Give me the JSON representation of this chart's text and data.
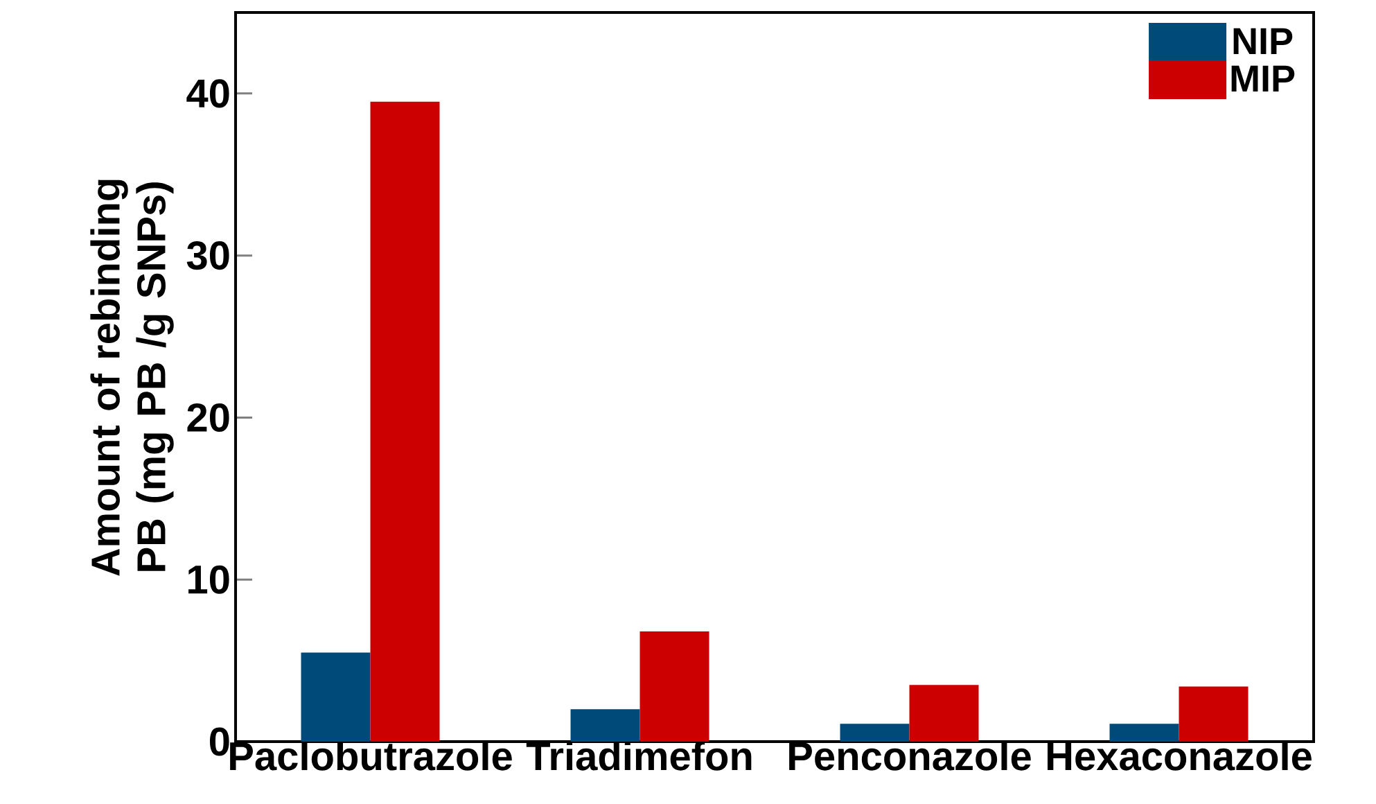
{
  "chart_data": {
    "type": "bar",
    "ylabel": "Amount of rebinding PB (mg PB /g SNPs)",
    "categories": [
      "Paclobutrazole",
      "Triadimefon",
      "Penconazole",
      "Hexaconazole"
    ],
    "series": [
      {
        "name": "NIP",
        "color": "#004a7a",
        "values": [
          5.5,
          2.0,
          1.1,
          1.1
        ]
      },
      {
        "name": "MIP",
        "color": "#cc0000",
        "values": [
          39.5,
          6.8,
          3.5,
          3.4
        ]
      }
    ],
    "ylim": [
      0,
      45
    ],
    "yticks": [
      0,
      10,
      20,
      30,
      40
    ],
    "grid": false,
    "legend": "top right"
  }
}
